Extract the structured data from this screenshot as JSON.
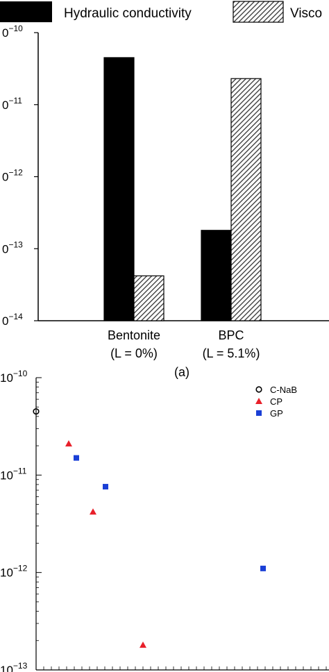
{
  "chart_data": [
    {
      "type": "bar",
      "scale": "log",
      "categories": [
        [
          "Bentonite",
          "(L = 0%)"
        ],
        [
          "BPC",
          "(L = 5.1%)"
        ]
      ],
      "series": [
        {
          "name": "Hydraulic conductivity",
          "fill": "solid",
          "color": "#000000",
          "values": [
            4.5e-11,
            1.8e-13
          ]
        },
        {
          "name": "Visco",
          "fill": "hatched",
          "color": "#555555",
          "values": [
            4.2e-14,
            2.3e-11
          ]
        }
      ],
      "ylim": [
        1e-14,
        1e-10
      ],
      "y_ticks": [
        {
          "exp": -10,
          "text": "0",
          "sup": "−10"
        },
        {
          "exp": -11,
          "text": "0",
          "sup": "−11"
        },
        {
          "exp": -12,
          "text": "0",
          "sup": "−12"
        },
        {
          "exp": -13,
          "text": "0",
          "sup": "−13"
        },
        {
          "exp": -14,
          "text": "0",
          "sup": "−14"
        }
      ],
      "legend_position": "top",
      "caption": "(a)"
    },
    {
      "type": "scatter",
      "scale": "log",
      "ylim": [
        1e-13,
        1e-10
      ],
      "y_ticks": [
        {
          "exp": -10,
          "text": "10",
          "sup": "−10"
        },
        {
          "exp": -11,
          "text": "10",
          "sup": "−11"
        },
        {
          "exp": -12,
          "text": "10",
          "sup": "−12"
        },
        {
          "exp": -13,
          "text": "10",
          "sup": "−13"
        }
      ],
      "legend_position": "top-right",
      "series": [
        {
          "name": "C-NaB",
          "marker": "circle",
          "color": "#000000",
          "points": [
            [
              0,
              4.5e-11
            ]
          ]
        },
        {
          "name": "CP",
          "marker": "triangle",
          "color": "#e8202a",
          "points": [
            [
              1,
              2.1e-11
            ],
            [
              2,
              4.2e-12
            ],
            [
              3,
              1.8e-13
            ]
          ]
        },
        {
          "name": "GP",
          "marker": "square",
          "color": "#1a3fd6",
          "points": [
            [
              1,
              1.5e-11
            ],
            [
              2,
              7.6e-12
            ],
            [
              3,
              1.1e-12
            ]
          ]
        }
      ]
    }
  ]
}
